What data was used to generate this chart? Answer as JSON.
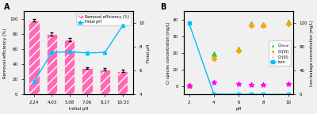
{
  "panel_A": {
    "x_labels": [
      "2.24",
      "4.03",
      "5.08",
      "7.06",
      "8.17",
      "10.33"
    ],
    "removal_efficiency": [
      98,
      80,
      73,
      35,
      33,
      31
    ],
    "removal_efficiency_err": [
      1.5,
      2.0,
      2.0,
      1.5,
      1.5,
      1.5
    ],
    "final_pH": [
      5.1,
      7.55,
      7.6,
      7.5,
      7.55,
      9.8
    ],
    "final_pH_err": [
      0.1,
      0.1,
      0.1,
      0.1,
      0.1,
      0.1
    ],
    "bar_color": "#FF69B4",
    "bar_hatch": "///",
    "line_color": "#00BFFF",
    "marker": "^",
    "ylabel_left": "Removal efficiency (%)",
    "ylabel_right": "Finial pH",
    "xlabel": "Initial pH",
    "ylim_left": [
      0,
      110
    ],
    "ylim_right": [
      4,
      11
    ],
    "yticks_left": [
      0,
      20,
      40,
      60,
      80,
      100
    ],
    "yticks_right": [
      4,
      6,
      8,
      10
    ],
    "label_bar": "Removal efficiency (%)",
    "label_line": "Finial pH"
  },
  "panel_B": {
    "pH": [
      2,
      4,
      6,
      7,
      8,
      10
    ],
    "Cr_total": [
      0.5,
      19.5,
      22.5,
      37.5,
      37.0,
      38.5
    ],
    "Cr_VI": [
      0.3,
      16.5,
      21.5,
      36.5,
      36.5,
      37.5
    ],
    "Cr_III": [
      0.2,
      2.5,
      1.2,
      1.0,
      0.8,
      1.5
    ],
    "iron": [
      120,
      1.0,
      0.5,
      0.5,
      0.3,
      0.5
    ],
    "color_Cr_total": "#32CD32",
    "color_Cr_VI": "#FFA500",
    "color_Cr_III": "#FF00FF",
    "color_iron": "#00BFFF",
    "ylabel_left": "Cr species concentration (mg/L)",
    "ylabel_right": "Iron leakage concentration (mg/L)",
    "xlabel": "pH",
    "ylim_left": [
      -5,
      45
    ],
    "ylim_right": [
      0,
      140
    ],
    "yticks_left": [
      0,
      10,
      20,
      30,
      40
    ],
    "yticks_right": [
      0,
      40,
      80,
      120
    ],
    "label_Cr_total": "Cr$_{total}$",
    "label_Cr_VI": "Cr(VI)",
    "label_Cr_III": "Cr(III)",
    "label_iron": "iron"
  },
  "background_color": "#f0f0f0"
}
